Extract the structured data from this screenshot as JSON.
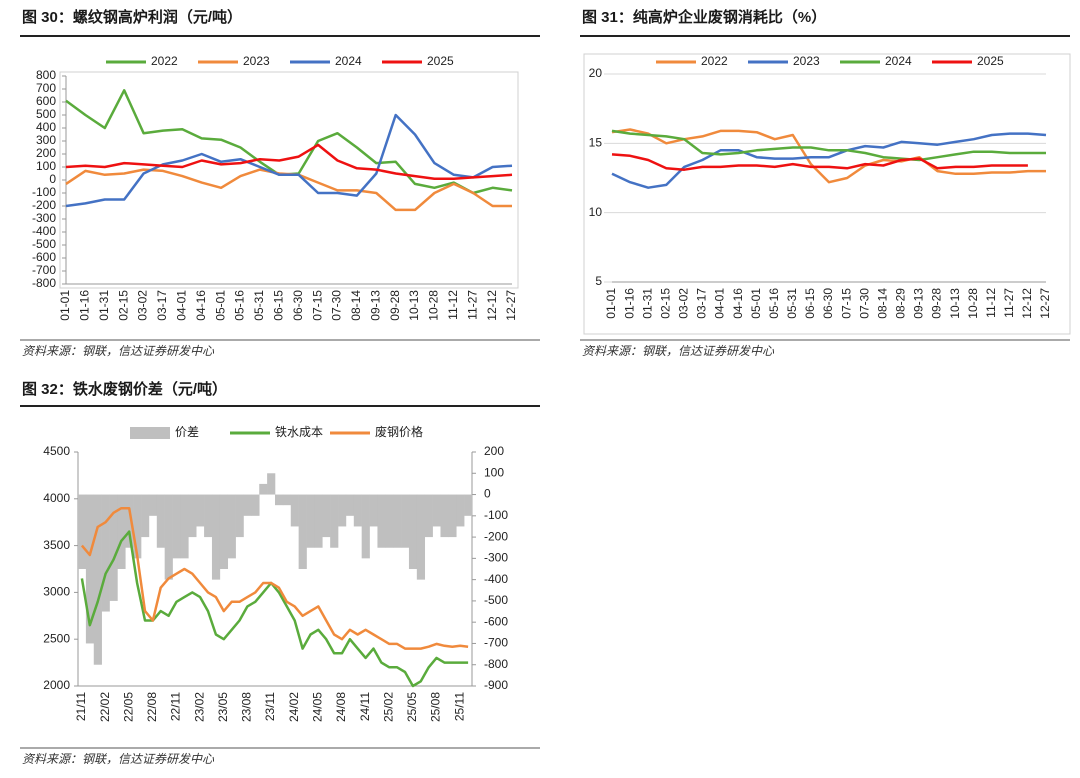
{
  "chart_data": [
    {
      "type": "line",
      "title": "图 30：螺纹钢高炉利润（元/吨）",
      "source": "资料来源：钢联，信达证券研发中心",
      "categories": [
        "01-01",
        "01-16",
        "01-31",
        "02-15",
        "03-02",
        "03-17",
        "04-01",
        "04-16",
        "05-01",
        "05-16",
        "05-31",
        "06-15",
        "06-30",
        "07-15",
        "07-30",
        "08-14",
        "09-13",
        "09-28",
        "10-13",
        "10-28",
        "11-12",
        "11-27",
        "12-12",
        "12-27"
      ],
      "series": [
        {
          "name": "2022",
          "color": "#5aab3c",
          "values": [
            610,
            500,
            400,
            690,
            360,
            380,
            390,
            320,
            310,
            250,
            140,
            40,
            50,
            300,
            360,
            250,
            130,
            140,
            -30,
            -60,
            -20,
            -100,
            -60,
            -80
          ]
        },
        {
          "name": "2023",
          "color": "#f08a3c",
          "values": [
            -30,
            70,
            40,
            50,
            80,
            70,
            30,
            -20,
            -60,
            30,
            80,
            50,
            40,
            -20,
            -80,
            -80,
            -100,
            -230,
            -230,
            -100,
            -30,
            -100,
            -200,
            -200
          ]
        },
        {
          "name": "2024",
          "color": "#4472c4",
          "values": [
            -200,
            -180,
            -150,
            -150,
            50,
            120,
            150,
            200,
            140,
            160,
            100,
            40,
            40,
            -100,
            -100,
            -120,
            50,
            500,
            350,
            130,
            40,
            20,
            100,
            110
          ]
        },
        {
          "name": "2025",
          "color": "#ee1111",
          "values": [
            100,
            110,
            100,
            130,
            120,
            110,
            100,
            150,
            120,
            130,
            160,
            150,
            180,
            270,
            150,
            90,
            80,
            50,
            30,
            10,
            10,
            20,
            30,
            40
          ]
        }
      ],
      "ylim": [
        -800,
        800
      ],
      "yticks": [
        800,
        700,
        600,
        500,
        400,
        300,
        200,
        100,
        0,
        -100,
        -200,
        -300,
        -400,
        -500,
        -600,
        -700,
        -800
      ],
      "grid": false
    },
    {
      "type": "line",
      "title": "图 31：纯高炉企业废钢消耗比（%）",
      "source": "资料来源：钢联，信达证券研发中心",
      "categories": [
        "01-01",
        "01-16",
        "01-31",
        "02-15",
        "03-02",
        "03-17",
        "04-01",
        "04-16",
        "05-01",
        "05-16",
        "05-31",
        "06-15",
        "06-30",
        "07-15",
        "07-30",
        "08-14",
        "08-29",
        "09-13",
        "09-28",
        "10-13",
        "10-28",
        "11-12",
        "11-27",
        "12-12",
        "12-27"
      ],
      "series": [
        {
          "name": "2022",
          "color": "#f08a3c",
          "values": [
            15.8,
            16,
            15.7,
            15.0,
            15.3,
            15.5,
            15.9,
            15.9,
            15.8,
            15.3,
            15.6,
            13.5,
            12.2,
            12.5,
            13.4,
            13.8,
            13.7,
            14.0,
            13.0,
            12.8,
            12.8,
            12.9,
            12.9,
            13.0,
            13.0
          ]
        },
        {
          "name": "2023",
          "color": "#4472c4",
          "values": [
            12.8,
            12.2,
            11.8,
            12.0,
            13.3,
            13.8,
            14.5,
            14.5,
            14.0,
            13.9,
            13.9,
            14.0,
            14.0,
            14.5,
            14.8,
            14.7,
            15.1,
            15.0,
            14.9,
            15.1,
            15.3,
            15.6,
            15.7,
            15.7,
            15.6
          ]
        },
        {
          "name": "2024",
          "color": "#5aab3c",
          "values": [
            15.9,
            15.7,
            15.6,
            15.5,
            15.3,
            14.3,
            14.2,
            14.3,
            14.5,
            14.6,
            14.7,
            14.7,
            14.5,
            14.5,
            14.3,
            14.0,
            13.9,
            13.8,
            14.0,
            14.2,
            14.4,
            14.4,
            14.3,
            14.3,
            14.3
          ]
        },
        {
          "name": "2025",
          "color": "#ee1111",
          "values": [
            14.2,
            14.1,
            13.8,
            13.2,
            13.1,
            13.3,
            13.3,
            13.4,
            13.4,
            13.3,
            13.5,
            13.3,
            13.3,
            13.2,
            13.5,
            13.4,
            13.8,
            13.9,
            13.2,
            13.3,
            13.3,
            13.4,
            13.4,
            13.4,
            null
          ]
        }
      ],
      "ylim": [
        5,
        20
      ],
      "yticks": [
        5,
        10,
        15,
        20
      ],
      "grid": true
    },
    {
      "type": "combo",
      "title": "图 32：铁水废钢价差（元/吨）",
      "source": "资料来源：钢联，信达证券研发中心",
      "categories": [
        "21/11",
        null,
        null,
        "22/02",
        null,
        null,
        "22/05",
        null,
        null,
        "22/08",
        null,
        null,
        "22/11",
        null,
        null,
        "23/02",
        null,
        null,
        "23/05",
        null,
        null,
        "23/08",
        null,
        null,
        "23/11",
        null,
        null,
        "24/02",
        null,
        null,
        "24/05",
        null,
        null,
        "24/08",
        null,
        null,
        "24/11",
        null,
        null,
        "25/02",
        null,
        null,
        "25/05",
        null,
        null,
        "25/08",
        null,
        null,
        "25/11",
        null
      ],
      "series": [
        {
          "name": "价差",
          "color": "#bfbfbf",
          "kind": "bar",
          "axis": "y2",
          "values": [
            -350,
            -700,
            -800,
            -550,
            -500,
            -350,
            -250,
            -300,
            -200,
            -100,
            -250,
            -400,
            -300,
            -300,
            -200,
            -150,
            -200,
            -400,
            -350,
            -300,
            -200,
            -100,
            -100,
            50,
            100,
            -50,
            -50,
            -150,
            -350,
            -250,
            -250,
            -200,
            -250,
            -150,
            -100,
            -150,
            -300,
            -150,
            -250,
            -250,
            -250,
            -250,
            -350,
            -400,
            -200,
            -150,
            -200,
            -200,
            -150,
            -100
          ]
        },
        {
          "name": "铁水成本",
          "color": "#5aab3c",
          "kind": "line",
          "values": [
            3150,
            2650,
            2900,
            3200,
            3350,
            3550,
            3650,
            3100,
            2700,
            2700,
            2800,
            2750,
            2900,
            2950,
            3000,
            2950,
            2800,
            2550,
            2500,
            2600,
            2700,
            2850,
            2900,
            3000,
            3100,
            3000,
            2850,
            2700,
            2400,
            2550,
            2600,
            2500,
            2350,
            2350,
            2500,
            2400,
            2300,
            2400,
            2250,
            2200,
            2200,
            2150,
            2000,
            2050,
            2200,
            2300,
            2250,
            2250,
            2250,
            2250
          ]
        },
        {
          "name": "废钢价格",
          "color": "#f08a3c",
          "kind": "line",
          "values": [
            3500,
            3400,
            3700,
            3750,
            3850,
            3900,
            3900,
            3400,
            2800,
            2700,
            3050,
            3150,
            3200,
            3250,
            3200,
            3100,
            3000,
            2950,
            2800,
            2900,
            2900,
            2950,
            3000,
            3100,
            3100,
            3050,
            2900,
            2850,
            2750,
            2800,
            2850,
            2700,
            2550,
            2500,
            2600,
            2550,
            2600,
            2550,
            2500,
            2450,
            2450,
            2400,
            2400,
            2400,
            2420,
            2450,
            2430,
            2420,
            2430,
            2420
          ]
        }
      ],
      "ylim": [
        2000,
        4500
      ],
      "yticks": [
        4500,
        4000,
        3500,
        3000,
        2500,
        2000
      ],
      "y2lim": [
        -900,
        200
      ],
      "y2ticks": [
        200,
        100,
        0,
        -100,
        -200,
        -300,
        -400,
        -500,
        -600,
        -700,
        -800,
        -900
      ],
      "grid": false
    }
  ]
}
